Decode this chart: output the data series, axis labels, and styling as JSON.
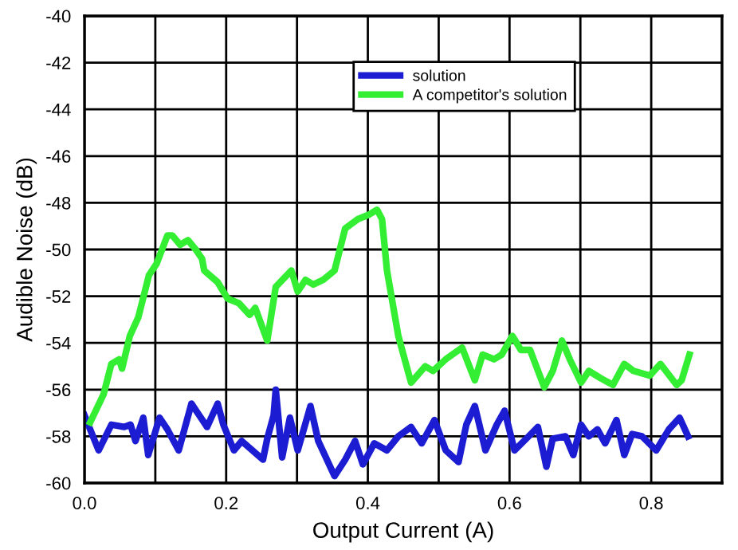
{
  "chart_data": {
    "type": "line",
    "xlabel": "Output Current (A)",
    "ylabel": "Audible Noise (dB)",
    "xlim": [
      0,
      0.9
    ],
    "xticks": [
      {
        "value": 0,
        "label": "0.0"
      },
      {
        "value": 0.1,
        "label": null
      },
      {
        "value": 0.2,
        "label": "0.2"
      },
      {
        "value": 0.3,
        "label": null
      },
      {
        "value": 0.4,
        "label": "0.4"
      },
      {
        "value": 0.5,
        "label": null
      },
      {
        "value": 0.6,
        "label": "0.6"
      },
      {
        "value": 0.7,
        "label": null
      },
      {
        "value": 0.8,
        "label": "0.8"
      },
      {
        "value": 0.9,
        "label": null
      }
    ],
    "ylim": [
      -60,
      -40
    ],
    "yticks": [
      -60,
      -58,
      -56,
      -54,
      -52,
      -50,
      -48,
      -46,
      -44,
      -42,
      -40
    ],
    "grid": true,
    "legend": "top",
    "line_style": "solid",
    "series": [
      {
        "name": "solution",
        "color": "#1c1cd2",
        "x": [
          0.0,
          0.02,
          0.038,
          0.056,
          0.065,
          0.072,
          0.083,
          0.09,
          0.106,
          0.117,
          0.133,
          0.151,
          0.162,
          0.173,
          0.188,
          0.196,
          0.211,
          0.222,
          0.252,
          0.258,
          0.267,
          0.27,
          0.279,
          0.29,
          0.301,
          0.319,
          0.33,
          0.353,
          0.368,
          0.382,
          0.393,
          0.409,
          0.427,
          0.443,
          0.461,
          0.476,
          0.494,
          0.51,
          0.528,
          0.539,
          0.551,
          0.566,
          0.582,
          0.593,
          0.607,
          0.627,
          0.64,
          0.652,
          0.661,
          0.679,
          0.69,
          0.701,
          0.712,
          0.724,
          0.735,
          0.751,
          0.762,
          0.773,
          0.787,
          0.807,
          0.825,
          0.84,
          0.852
        ],
        "values": [
          -57.1,
          -58.6,
          -57.5,
          -57.6,
          -57.5,
          -58.2,
          -57.2,
          -58.8,
          -57.2,
          -57.7,
          -58.6,
          -56.6,
          -57.1,
          -57.6,
          -56.6,
          -57.5,
          -58.6,
          -58.2,
          -59.0,
          -58.1,
          -57.1,
          -56.0,
          -58.9,
          -57.2,
          -58.6,
          -56.7,
          -58.2,
          -59.7,
          -59.0,
          -58.2,
          -59.2,
          -58.3,
          -58.6,
          -58.0,
          -57.6,
          -58.3,
          -57.3,
          -58.6,
          -59.1,
          -57.5,
          -56.7,
          -58.6,
          -57.5,
          -56.9,
          -58.6,
          -58.0,
          -57.6,
          -59.3,
          -58.1,
          -58.0,
          -58.8,
          -57.5,
          -58.0,
          -57.7,
          -58.3,
          -57.3,
          -58.8,
          -57.9,
          -58.0,
          -58.6,
          -57.7,
          -57.2,
          -58.0
        ]
      },
      {
        "name": "A competitor's solution",
        "color": "#33ee33",
        "x": [
          0.008,
          0.027,
          0.038,
          0.049,
          0.053,
          0.064,
          0.076,
          0.091,
          0.102,
          0.117,
          0.124,
          0.135,
          0.146,
          0.157,
          0.166,
          0.169,
          0.188,
          0.202,
          0.218,
          0.233,
          0.241,
          0.258,
          0.27,
          0.292,
          0.301,
          0.312,
          0.323,
          0.337,
          0.353,
          0.368,
          0.386,
          0.402,
          0.413,
          0.42,
          0.427,
          0.443,
          0.461,
          0.481,
          0.492,
          0.51,
          0.533,
          0.551,
          0.562,
          0.578,
          0.589,
          0.604,
          0.616,
          0.629,
          0.649,
          0.661,
          0.674,
          0.685,
          0.701,
          0.712,
          0.728,
          0.746,
          0.762,
          0.775,
          0.798,
          0.813,
          0.836,
          0.843,
          0.854
        ],
        "values": [
          -57.4,
          -56.2,
          -54.9,
          -54.7,
          -55.1,
          -53.7,
          -52.9,
          -51.1,
          -50.6,
          -49.4,
          -49.4,
          -49.8,
          -49.6,
          -50.0,
          -50.4,
          -50.9,
          -51.4,
          -52.1,
          -52.3,
          -52.8,
          -52.5,
          -53.9,
          -51.6,
          -50.9,
          -51.8,
          -51.3,
          -51.5,
          -51.3,
          -50.9,
          -49.1,
          -48.7,
          -48.5,
          -48.3,
          -48.7,
          -50.9,
          -53.7,
          -55.7,
          -55.0,
          -55.2,
          -54.7,
          -54.2,
          -55.6,
          -54.5,
          -54.7,
          -54.5,
          -53.7,
          -54.3,
          -54.3,
          -55.9,
          -55.2,
          -53.9,
          -54.7,
          -55.7,
          -55.2,
          -55.5,
          -55.8,
          -54.9,
          -55.2,
          -55.4,
          -54.9,
          -55.8,
          -55.6,
          -54.5
        ]
      }
    ]
  }
}
